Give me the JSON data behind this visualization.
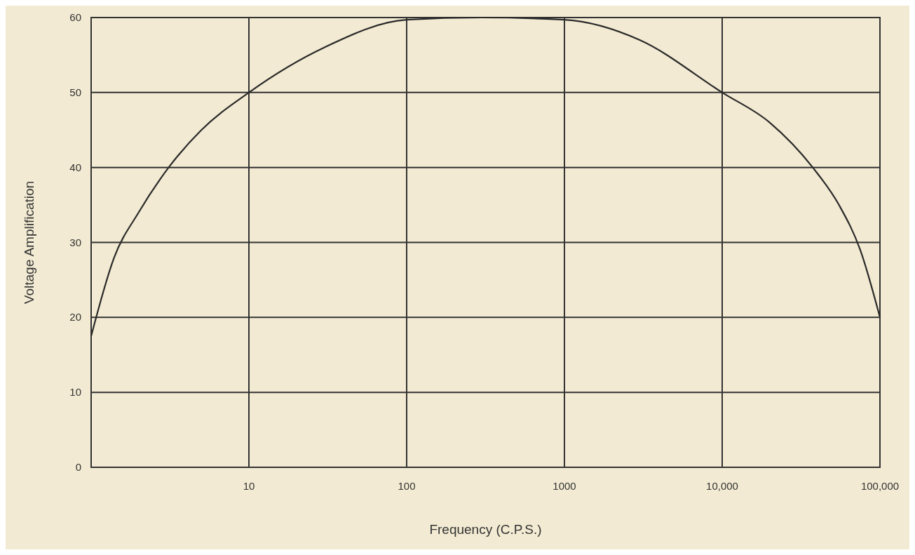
{
  "chart_data": {
    "type": "line",
    "xlabel": "Frequency (C.P.S.)",
    "ylabel": "Voltage Amplification",
    "log": "x",
    "grid": true,
    "marker": "none",
    "line_style": "solid",
    "xlim": [
      1,
      100000
    ],
    "xticks": [
      {
        "value": 1,
        "label": null
      },
      10,
      100,
      1000,
      {
        "value": 10000,
        "label": "10,000"
      },
      {
        "value": 100000,
        "label": "100,000"
      }
    ],
    "ylim": [
      0,
      60
    ],
    "yticks": [
      0,
      10,
      20,
      30,
      40,
      50,
      60
    ],
    "series": [
      {
        "color": "#2a2a2a",
        "x": [
          1,
          1.4,
          2,
          3.1,
          5,
          10,
          30,
          100,
          300,
          1000,
          3000,
          10000,
          20000,
          37500,
          55000,
          75000,
          100000
        ],
        "values": [
          17.5,
          28,
          34,
          40,
          45,
          50,
          56,
          59.7,
          60,
          59.7,
          57,
          50,
          46,
          40,
          35,
          29,
          20
        ]
      }
    ]
  }
}
